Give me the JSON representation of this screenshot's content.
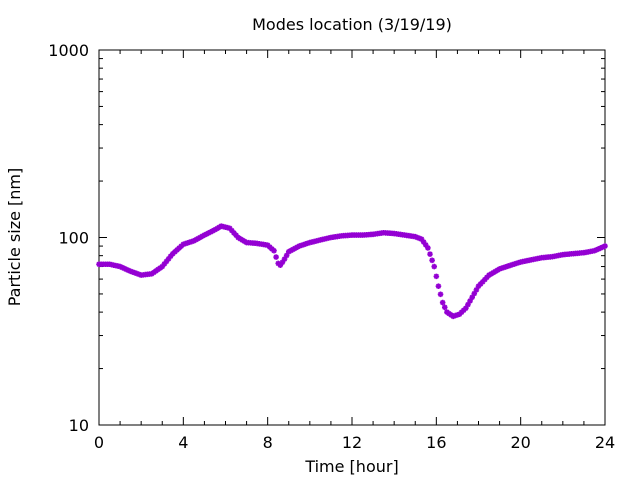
{
  "chart_data": {
    "type": "scatter",
    "title": "Modes location (3/19/19)",
    "xlabel": "Time [hour]",
    "ylabel": "Particle size [nm]",
    "xlim": [
      0,
      24
    ],
    "ylim": [
      10,
      1000
    ],
    "yscale": "log",
    "xticks": [
      "0",
      "4",
      "8",
      "12",
      "16",
      "20",
      "24"
    ],
    "yticks": [
      "10",
      "100",
      "1000"
    ],
    "grid": false,
    "marker_color": "#9400d3",
    "series": [
      {
        "x": [
          0.0,
          0.5,
          1.0,
          1.5,
          2.0,
          2.5,
          3.0,
          3.5,
          4.0,
          4.5,
          5.0,
          5.5,
          5.8,
          6.2,
          6.6,
          7.0,
          7.5,
          8.0,
          8.3,
          8.55,
          8.75,
          9.0,
          9.5,
          10.0,
          10.5,
          11.0,
          11.5,
          12.0,
          12.5,
          13.0,
          13.5,
          14.0,
          14.5,
          15.0,
          15.3,
          15.6,
          15.9,
          16.1,
          16.3,
          16.5,
          16.8,
          17.1,
          17.4,
          17.7,
          18.0,
          18.5,
          19.0,
          19.5,
          20.0,
          20.5,
          21.0,
          21.5,
          22.0,
          22.5,
          23.0,
          23.5,
          24.0
        ],
        "y": [
          72,
          72,
          70,
          66,
          63,
          64,
          70,
          82,
          92,
          96,
          103,
          110,
          115,
          112,
          100,
          94,
          93,
          91,
          85,
          70,
          75,
          84,
          90,
          94,
          97,
          100,
          102,
          103,
          103,
          104,
          106,
          105,
          103,
          101,
          98,
          88,
          70,
          55,
          45,
          40,
          38,
          39,
          42,
          48,
          55,
          63,
          68,
          71,
          74,
          76,
          78,
          79,
          81,
          82,
          83,
          85,
          90
        ]
      }
    ]
  }
}
